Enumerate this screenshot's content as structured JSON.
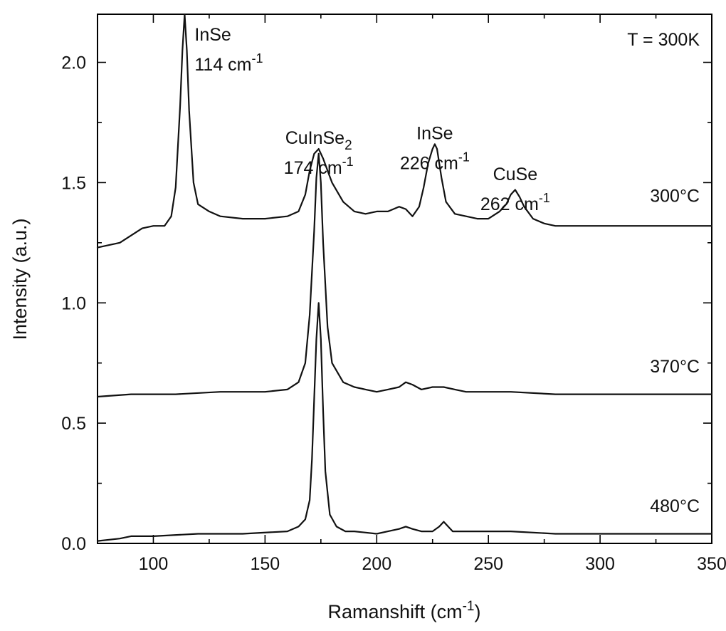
{
  "chart_data": {
    "type": "line",
    "xlabel": "Ramanshift (cm",
    "xlabel_sup": "-1",
    "xlabel_tail": ")",
    "ylabel": "Intensity (a.u.)",
    "xlim": [
      75,
      350
    ],
    "ylim": [
      0.0,
      2.2
    ],
    "x_ticks": [
      "100",
      "150",
      "200",
      "250",
      "300",
      "350"
    ],
    "y_ticks": [
      "0.0",
      "0.5",
      "1.0",
      "1.5",
      "2.0"
    ],
    "temperature_note": "T = 300K",
    "annotations": [
      {
        "name": "InSe",
        "position": "114 cm",
        "sup": "-1",
        "x": 114,
        "y": 2.15
      },
      {
        "name": "CuInSe",
        "name_sub": "2",
        "position": "174 cm",
        "sup": "-1",
        "x": 174,
        "y": 1.72
      },
      {
        "name": "InSe",
        "position": "226 cm",
        "sup": "-1",
        "x": 226,
        "y": 1.74
      },
      {
        "name": "CuSe",
        "position": "262 cm",
        "sup": "-1",
        "x": 262,
        "y": 1.57
      }
    ],
    "series": [
      {
        "name": "300°C",
        "label_y": 1.42,
        "baseline": 1.32,
        "x": [
          75,
          85,
          95,
          100,
          105,
          108,
          110,
          112,
          113,
          114,
          115,
          116,
          118,
          120,
          125,
          130,
          140,
          150,
          160,
          165,
          168,
          170,
          172,
          174,
          176,
          178,
          180,
          185,
          190,
          195,
          200,
          205,
          210,
          213,
          216,
          219,
          221,
          223,
          225,
          226,
          227,
          229,
          231,
          235,
          240,
          245,
          250,
          255,
          258,
          260,
          262,
          264,
          266,
          270,
          275,
          280,
          290,
          300,
          320,
          340,
          350
        ],
        "y": [
          1.23,
          1.25,
          1.31,
          1.32,
          1.32,
          1.36,
          1.48,
          1.82,
          2.05,
          2.2,
          2.05,
          1.8,
          1.5,
          1.41,
          1.38,
          1.36,
          1.35,
          1.35,
          1.36,
          1.38,
          1.45,
          1.55,
          1.62,
          1.64,
          1.6,
          1.55,
          1.5,
          1.42,
          1.38,
          1.37,
          1.38,
          1.38,
          1.4,
          1.39,
          1.36,
          1.4,
          1.48,
          1.58,
          1.64,
          1.66,
          1.64,
          1.52,
          1.42,
          1.37,
          1.36,
          1.35,
          1.35,
          1.38,
          1.41,
          1.45,
          1.47,
          1.44,
          1.4,
          1.35,
          1.33,
          1.32,
          1.32,
          1.32,
          1.32,
          1.32,
          1.32
        ]
      },
      {
        "name": "370°C",
        "label_y": 0.71,
        "baseline": 0.62,
        "x": [
          75,
          90,
          110,
          130,
          150,
          160,
          165,
          168,
          170,
          172,
          173,
          174,
          175,
          176,
          178,
          180,
          185,
          190,
          195,
          200,
          205,
          210,
          213,
          216,
          220,
          225,
          230,
          235,
          240,
          260,
          280,
          300,
          320,
          350
        ],
        "y": [
          0.61,
          0.62,
          0.62,
          0.63,
          0.63,
          0.64,
          0.67,
          0.75,
          0.95,
          1.3,
          1.52,
          1.62,
          1.5,
          1.25,
          0.9,
          0.75,
          0.67,
          0.65,
          0.64,
          0.63,
          0.64,
          0.65,
          0.67,
          0.66,
          0.64,
          0.65,
          0.65,
          0.64,
          0.63,
          0.63,
          0.62,
          0.62,
          0.62,
          0.62
        ]
      },
      {
        "name": "480°C",
        "label_y": 0.13,
        "baseline": 0.04,
        "x": [
          75,
          85,
          90,
          100,
          120,
          140,
          160,
          165,
          168,
          170,
          171,
          172,
          173,
          174,
          175,
          176,
          177,
          179,
          182,
          186,
          190,
          200,
          205,
          210,
          213,
          216,
          220,
          225,
          228,
          230,
          232,
          234,
          240,
          260,
          280,
          300,
          320,
          350
        ],
        "y": [
          0.01,
          0.02,
          0.03,
          0.03,
          0.04,
          0.04,
          0.05,
          0.07,
          0.1,
          0.18,
          0.35,
          0.6,
          0.85,
          1.0,
          0.85,
          0.55,
          0.3,
          0.12,
          0.07,
          0.05,
          0.05,
          0.04,
          0.05,
          0.06,
          0.07,
          0.06,
          0.05,
          0.05,
          0.07,
          0.09,
          0.07,
          0.05,
          0.05,
          0.05,
          0.04,
          0.04,
          0.04,
          0.04
        ]
      }
    ]
  }
}
